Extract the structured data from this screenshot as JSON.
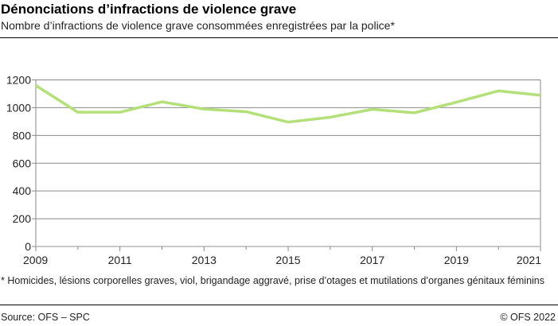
{
  "header": {
    "title": "Dénonciations d’infractions de violence grave",
    "subtitle": "Nombre d’infractions de violence grave consommées enregistrées par la police*"
  },
  "footnote": "* Homicides, lésions corporelles graves, viol, brigandage aggravé, prise d’otages et mutilations d’organes génitaux féminins",
  "source": "Source: OFS – SPC",
  "copyright": "© OFS 2022",
  "chart_data": {
    "type": "line",
    "x": [
      2009,
      2010,
      2011,
      2012,
      2013,
      2014,
      2015,
      2016,
      2017,
      2018,
      2019,
      2020,
      2021
    ],
    "series": [
      {
        "values": [
          1160,
          967,
          967,
          1042,
          990,
          971,
          896,
          931,
          988,
          963,
          1039,
          1121,
          1090
        ],
        "color": "#b4e07a"
      }
    ],
    "xticks": [
      "2009",
      "2011",
      "2013",
      "2015",
      "2017",
      "2019",
      "2021"
    ],
    "yticks": [
      "0",
      "200",
      "400",
      "600",
      "800",
      "1000",
      "1200"
    ],
    "ylim": [
      0,
      1200
    ],
    "xlim": [
      2009,
      2021
    ],
    "grid": true
  }
}
